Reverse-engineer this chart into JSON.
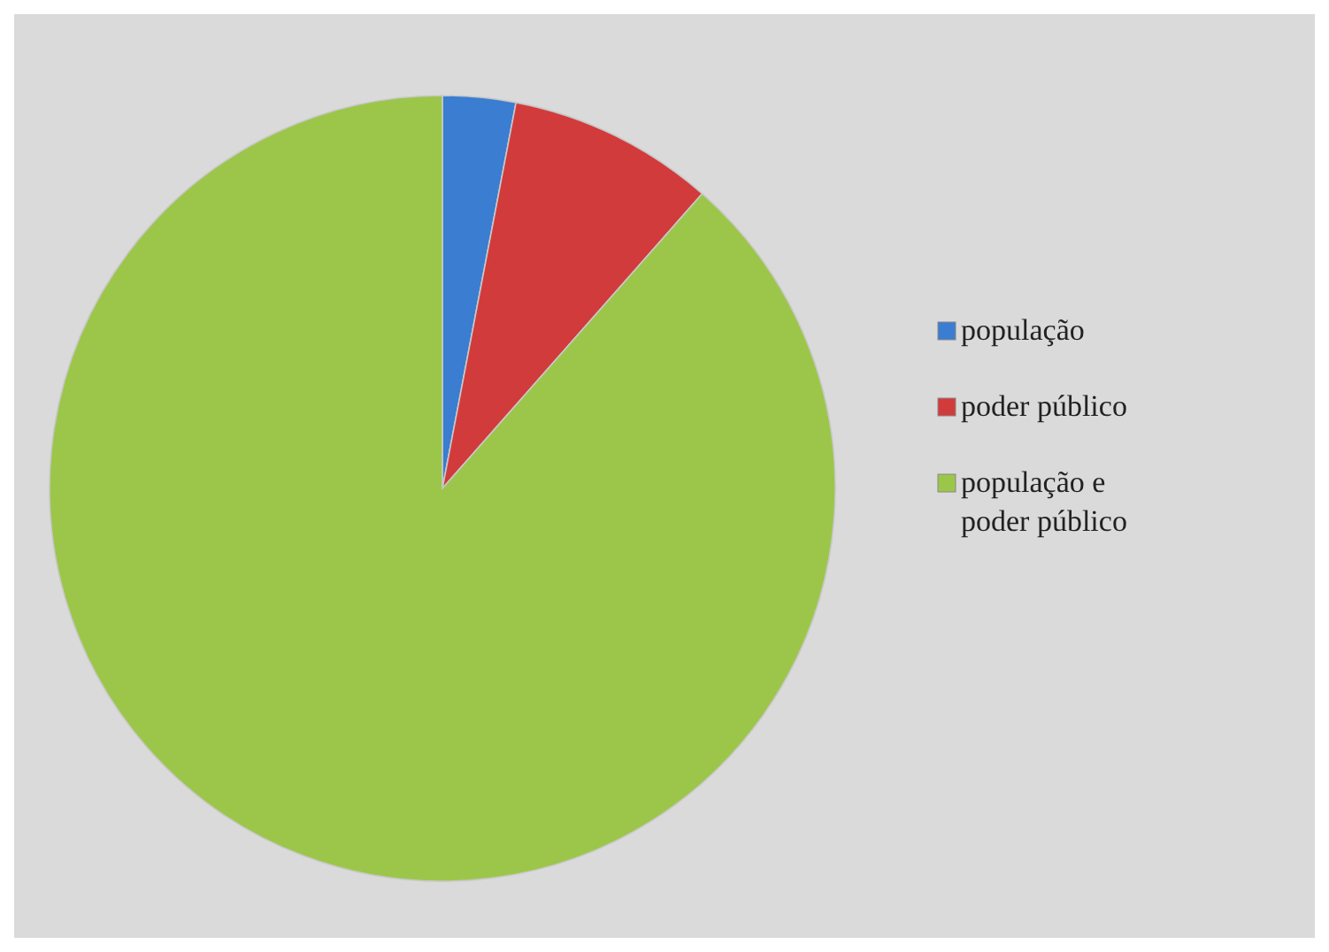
{
  "chart_data": {
    "type": "pie",
    "categories": [
      "população",
      "poder público",
      "população e poder público"
    ],
    "values": [
      3,
      8.5,
      88.5
    ],
    "colors": [
      "#3b7dd0",
      "#d23b3b",
      "#9cc64a"
    ],
    "legend": "right"
  }
}
